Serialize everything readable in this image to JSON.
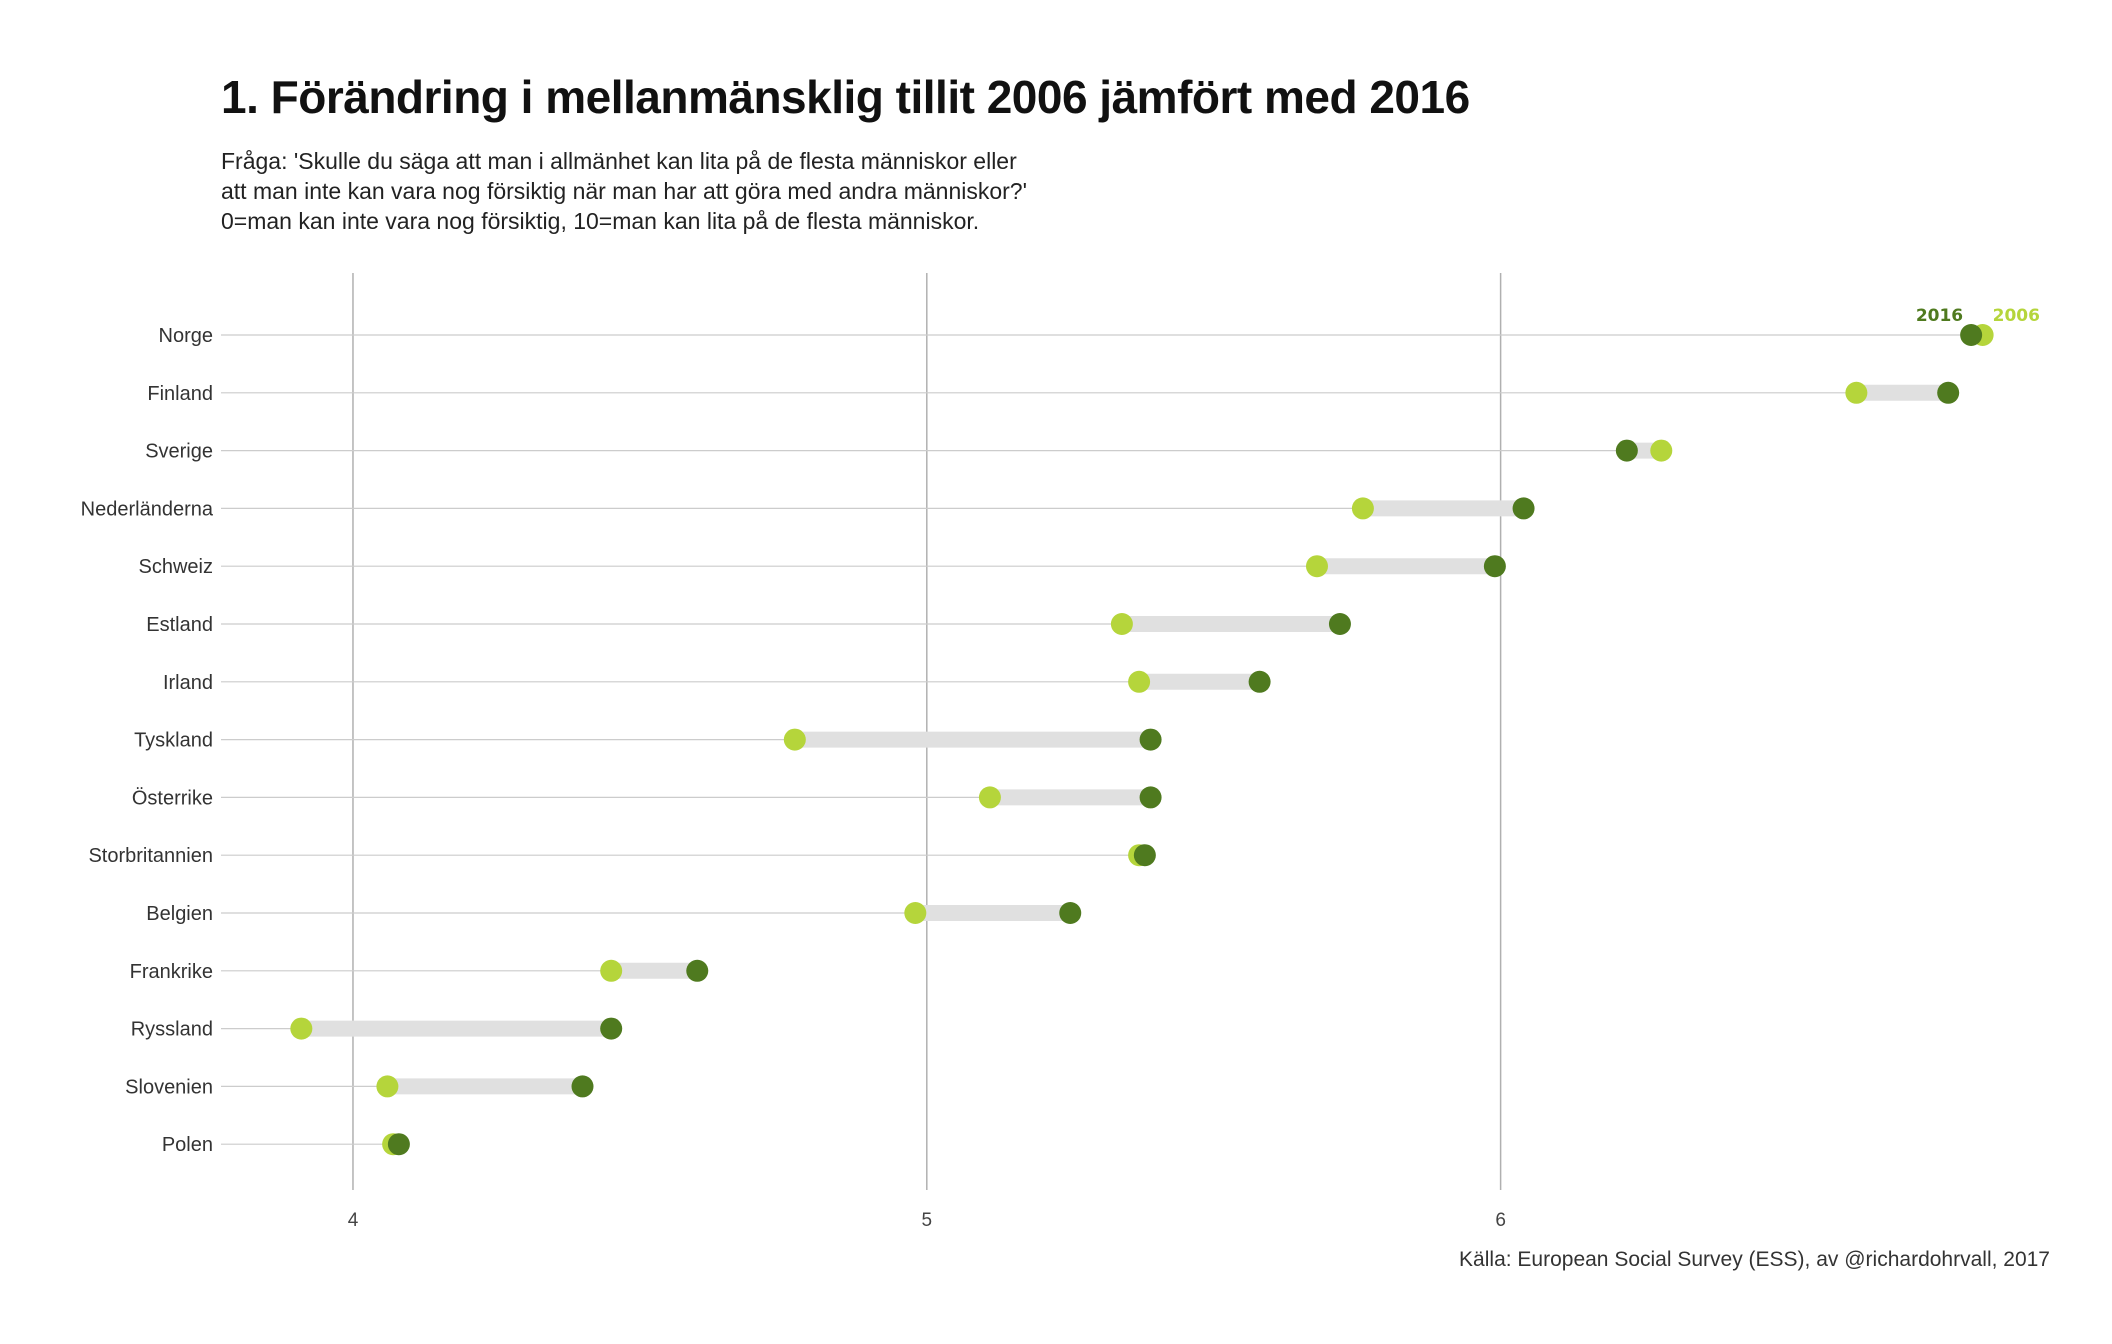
{
  "title": "1. Förändring i mellanmänsklig tillit 2006 jämfört med 2016",
  "subtitle_lines": [
    "Fråga: 'Skulle du säga att man i allmänhet kan lita på de flesta människor eller",
    "att man inte kan vara nog försiktig när man har att göra med andra människor?'",
    "0=man kan inte vara nog försiktig, 10=man kan lita på de flesta människor."
  ],
  "caption": "Källa: European Social Survey (ESS), av @richardohrvall, 2017",
  "colors": {
    "y2006": "#b5d53b",
    "y2016": "#4f7a1f",
    "segment": "#e0e0e0",
    "rowline": "#cccccc",
    "grid": "#b0b0b0"
  },
  "chart_data": {
    "type": "dumbbell",
    "title": "1. Förändring i mellanmänsklig tillit 2006 jämfört med 2016",
    "xlabel": "",
    "ylabel": "",
    "xlim": [
      3.77,
      6.94
    ],
    "xticks": [
      4,
      5,
      6
    ],
    "grid": true,
    "legend": {
      "placement": "top-right",
      "labels": [
        "2016",
        "2006"
      ]
    },
    "categories": [
      "Norge",
      "Finland",
      "Sverige",
      "Nederländerna",
      "Schweiz",
      "Estland",
      "Irland",
      "Tyskland",
      "Österrike",
      "Storbritannien",
      "Belgien",
      "Frankrike",
      "Ryssland",
      "Slovenien",
      "Polen"
    ],
    "series": [
      {
        "name": "2006",
        "values": [
          6.84,
          6.62,
          6.28,
          5.76,
          5.68,
          5.34,
          5.37,
          4.77,
          5.11,
          5.37,
          4.98,
          4.45,
          3.91,
          4.06,
          4.07
        ]
      },
      {
        "name": "2016",
        "values": [
          6.82,
          6.78,
          6.22,
          6.04,
          5.99,
          5.72,
          5.58,
          5.39,
          5.39,
          5.38,
          5.25,
          4.6,
          4.45,
          4.4,
          4.08
        ]
      }
    ]
  }
}
